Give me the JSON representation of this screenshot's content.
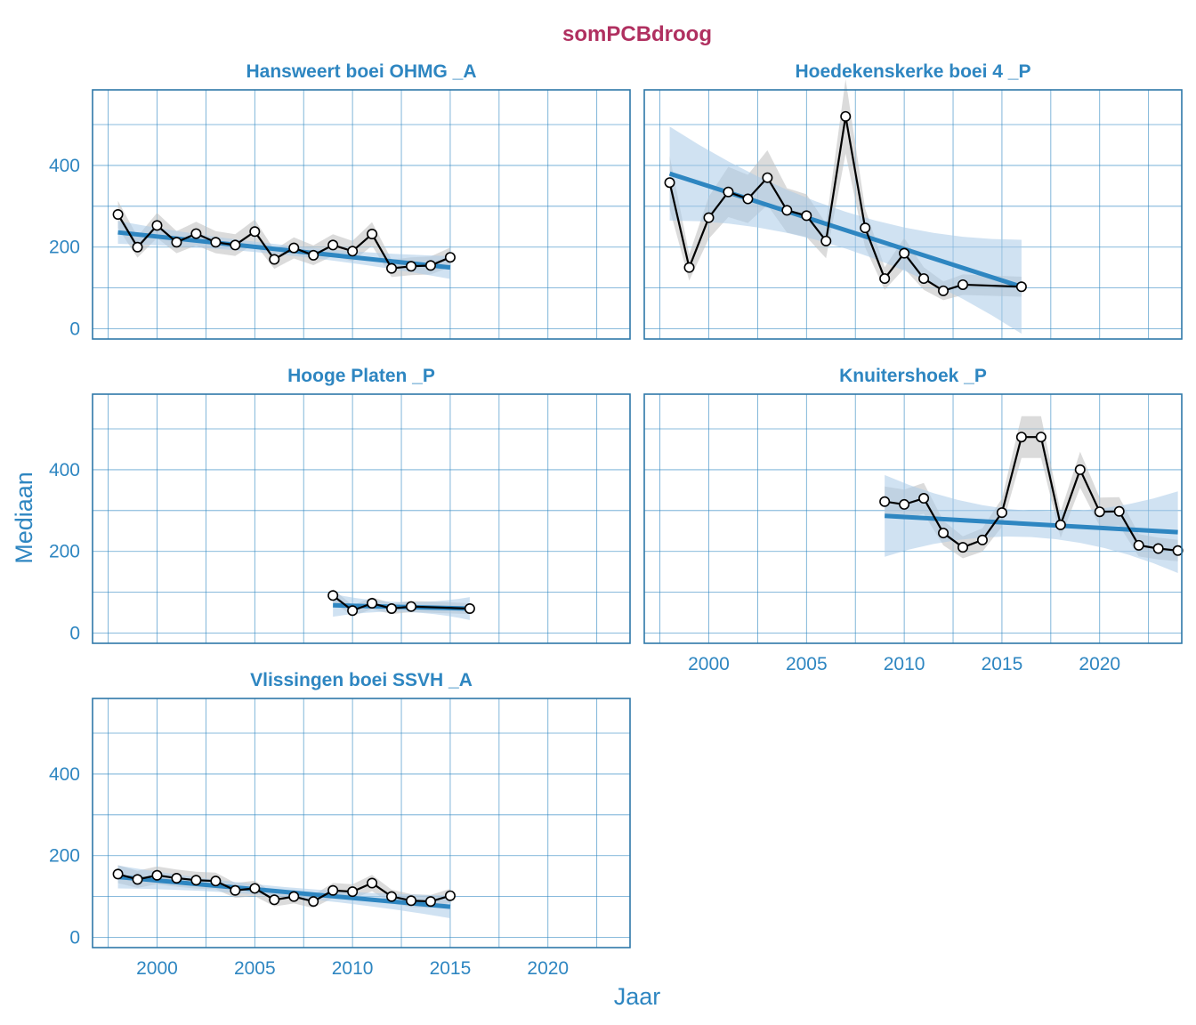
{
  "chart_data": {
    "type": "line",
    "title": "somPCBdroog",
    "xlabel": "Jaar",
    "ylabel": "Mediaan",
    "xlim": [
      1996.7,
      2024.2
    ],
    "ylim": [
      -25,
      585
    ],
    "x_ticks": [
      2000,
      2005,
      2010,
      2015,
      2020
    ],
    "y_ticks": [
      0,
      200,
      400
    ],
    "colors": {
      "title": "#b03060",
      "axis_text": "#2e86c1",
      "trend": "#2e86c1",
      "trend_band": "#a9cbe8",
      "smooth_band": "#bdbdbd",
      "series": "#000000",
      "grid": "#2e86c1"
    },
    "panels": [
      {
        "name": "Hansweert boei OHMG _A",
        "x": [
          1998,
          1999,
          2000,
          2001,
          2002,
          2003,
          2004,
          2005,
          2006,
          2007,
          2008,
          2009,
          2010,
          2011,
          2012,
          2013,
          2014,
          2015
        ],
        "y": [
          280,
          200,
          253,
          212,
          233,
          212,
          205,
          238,
          170,
          198,
          180,
          205,
          190,
          232,
          148,
          153,
          155,
          175
        ],
        "trend": {
          "x": [
            1998,
            2015
          ],
          "y": [
            236,
            150
          ]
        }
      },
      {
        "name": "Hoedekenskerke boei 4 _P",
        "x": [
          1998,
          1999,
          2000,
          2001,
          2002,
          2003,
          2004,
          2005,
          2006,
          2007,
          2008,
          2009,
          2010,
          2011,
          2012,
          2013,
          2016
        ],
        "y": [
          358,
          150,
          272,
          335,
          318,
          370,
          290,
          277,
          215,
          520,
          247,
          123,
          185,
          123,
          93,
          108,
          103
        ],
        "trend": {
          "x": [
            1998,
            2016
          ],
          "y": [
            380,
            103
          ]
        }
      },
      {
        "name": "Hooge Platen _P",
        "x": [
          2009,
          2010,
          2011,
          2012,
          2013,
          2016
        ],
        "y": [
          92,
          55,
          73,
          60,
          65,
          60
        ],
        "trend": {
          "x": [
            2009,
            2016
          ],
          "y": [
            68,
            60
          ]
        }
      },
      {
        "name": "Knuitershoek _P",
        "x": [
          2009,
          2010,
          2011,
          2012,
          2013,
          2014,
          2015,
          2016,
          2017,
          2018,
          2019,
          2020,
          2021,
          2022,
          2023,
          2024
        ],
        "y": [
          322,
          315,
          330,
          245,
          210,
          228,
          295,
          480,
          480,
          265,
          400,
          297,
          298,
          215,
          207,
          202
        ],
        "trend": {
          "x": [
            2009,
            2024
          ],
          "y": [
            287,
            247
          ]
        }
      },
      {
        "name": "Vlissingen boei SSVH _A",
        "x": [
          1998,
          1999,
          2000,
          2001,
          2002,
          2003,
          2004,
          2005,
          2006,
          2007,
          2008,
          2009,
          2010,
          2011,
          2012,
          2013,
          2014,
          2015
        ],
        "y": [
          155,
          142,
          152,
          145,
          140,
          138,
          115,
          120,
          92,
          100,
          88,
          115,
          112,
          133,
          100,
          90,
          88,
          102
        ],
        "trend": {
          "x": [
            1998,
            2015
          ],
          "y": [
            148,
            75
          ]
        }
      }
    ]
  }
}
